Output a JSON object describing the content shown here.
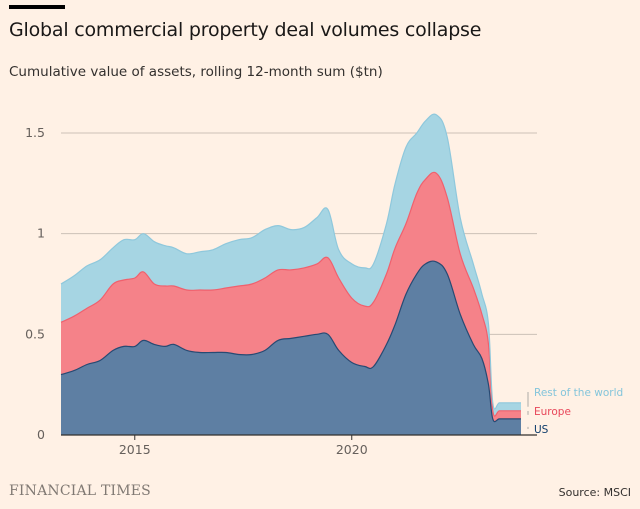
{
  "header": {
    "title": "Global commercial property deal volumes collapse",
    "subtitle": "Cumulative value of assets, rolling 12-month sum ($tn)"
  },
  "footer": {
    "logo": "FINANCIAL TIMES",
    "source": "Source: MSCI"
  },
  "chart_data": {
    "type": "area",
    "stacked": true,
    "title": "Global commercial property deal volumes collapse",
    "subtitle": "Cumulative value of assets, rolling 12-month sum ($tn)",
    "xlabel": "",
    "ylabel": "",
    "xlim": [
      2013.3,
      2023.9
    ],
    "ylim": [
      0,
      1.6
    ],
    "yticks": [
      0,
      0.5,
      1,
      1.5
    ],
    "ytick_labels": [
      "0",
      "0.5",
      "1",
      "1.5"
    ],
    "xticks": [
      2015,
      2020
    ],
    "xtick_labels": [
      "2015",
      "2020"
    ],
    "grid": true,
    "legend": "inline-right",
    "x": [
      2013.3,
      2013.6,
      2013.9,
      2014.2,
      2014.5,
      2014.75,
      2015.0,
      2015.2,
      2015.45,
      2015.7,
      2015.9,
      2016.2,
      2016.5,
      2016.8,
      2017.1,
      2017.4,
      2017.7,
      2018.0,
      2018.3,
      2018.6,
      2018.9,
      2019.2,
      2019.45,
      2019.7,
      2020.0,
      2020.3,
      2020.5,
      2020.8,
      2021.0,
      2021.25,
      2021.5,
      2021.7,
      2021.95,
      2022.2,
      2022.5,
      2022.8,
      2023.0,
      2023.15,
      2023.25,
      2023.4,
      2023.6,
      2023.9
    ],
    "series": [
      {
        "name": "US",
        "color": "#5e7fa3",
        "label_color": "#0d3c6b",
        "values": [
          0.3,
          0.32,
          0.35,
          0.37,
          0.42,
          0.44,
          0.44,
          0.47,
          0.45,
          0.44,
          0.45,
          0.42,
          0.41,
          0.41,
          0.41,
          0.4,
          0.4,
          0.42,
          0.47,
          0.48,
          0.49,
          0.5,
          0.5,
          0.42,
          0.36,
          0.34,
          0.34,
          0.45,
          0.55,
          0.7,
          0.8,
          0.85,
          0.86,
          0.8,
          0.6,
          0.45,
          0.38,
          0.25,
          0.08,
          0.08,
          0.08,
          0.08
        ]
      },
      {
        "name": "Europe",
        "color": "#f58289",
        "label_color": "#e8475a",
        "values": [
          0.26,
          0.27,
          0.28,
          0.3,
          0.33,
          0.33,
          0.34,
          0.34,
          0.3,
          0.3,
          0.29,
          0.3,
          0.31,
          0.31,
          0.32,
          0.34,
          0.35,
          0.36,
          0.35,
          0.34,
          0.34,
          0.35,
          0.38,
          0.36,
          0.32,
          0.3,
          0.32,
          0.35,
          0.38,
          0.35,
          0.4,
          0.42,
          0.44,
          0.38,
          0.3,
          0.28,
          0.22,
          0.2,
          0.04,
          0.04,
          0.04,
          0.04
        ]
      },
      {
        "name": "Rest of the world",
        "color": "#a6d5e3",
        "label_color": "#84c5db",
        "values": [
          0.19,
          0.2,
          0.21,
          0.2,
          0.18,
          0.2,
          0.19,
          0.19,
          0.21,
          0.2,
          0.19,
          0.18,
          0.19,
          0.2,
          0.22,
          0.23,
          0.23,
          0.24,
          0.22,
          0.2,
          0.2,
          0.23,
          0.24,
          0.14,
          0.17,
          0.19,
          0.19,
          0.25,
          0.32,
          0.38,
          0.3,
          0.29,
          0.29,
          0.3,
          0.18,
          0.12,
          0.1,
          0.1,
          0.04,
          0.04,
          0.04,
          0.04
        ]
      }
    ]
  }
}
